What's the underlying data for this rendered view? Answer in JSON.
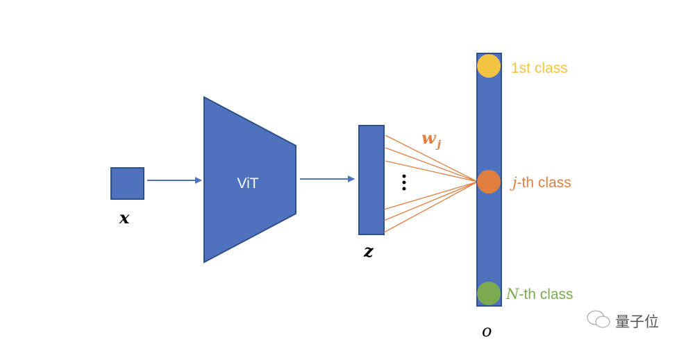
{
  "input_label": "x",
  "model_label": "ViT",
  "feature_label": "z",
  "weight_label": {
    "base": "w",
    "sub": "j"
  },
  "ellipsis": "⋮",
  "output_label": "o",
  "classes": [
    {
      "prefix": "",
      "text": "1st class",
      "color": "#F5C342"
    },
    {
      "prefix": "j",
      "text": "-th class",
      "color": "#E07F3F"
    },
    {
      "prefix": "N",
      "text": "-th class",
      "color": "#7BAA50"
    }
  ],
  "colors": {
    "block": "#4E72BE",
    "block_border": "#2F4F8A",
    "arrow": "#4E72BE",
    "weights": "#E07F3F"
  },
  "watermark": {
    "icon": "wechat-icon",
    "text": "量子位"
  }
}
